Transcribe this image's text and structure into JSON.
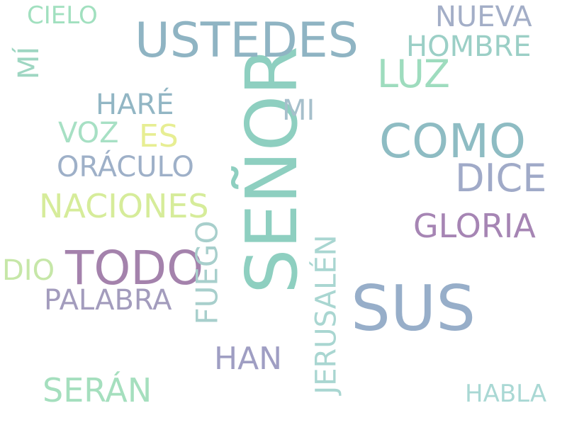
{
  "words": {
    "senor": {
      "text": "SEÑOR",
      "color": "#8ecfc0"
    },
    "ustedes": {
      "text": "USTEDES",
      "color": "#8fb4c3"
    },
    "sus": {
      "text": "SUS",
      "color": "#97aec9"
    },
    "como": {
      "text": "COMO",
      "color": "#8ebcc3"
    },
    "todo": {
      "text": "TODO",
      "color": "#a482ac"
    },
    "dice": {
      "text": "DICE",
      "color": "#a0aac8"
    },
    "luz": {
      "text": "LUZ",
      "color": "#9edcbe"
    },
    "naciones": {
      "text": "NACIONES",
      "color": "#d6ec9a"
    },
    "gloria": {
      "text": "GLORIA",
      "color": "#a685b4"
    },
    "jerusalen": {
      "text": "JERUSALÉN",
      "color": "#a9d6d1"
    },
    "fuego": {
      "text": "FUEGO",
      "color": "#a8cfcc"
    },
    "seran": {
      "text": "SERÁN",
      "color": "#a5dfbe"
    },
    "nueva": {
      "text": "NUEVA",
      "color": "#a3aec7"
    },
    "hombre": {
      "text": "HOMBRE",
      "color": "#9bcfc6"
    },
    "palabra": {
      "text": "PALABRA",
      "color": "#a39cbd"
    },
    "oraculo": {
      "text": "ORÁCULO",
      "color": "#9eb0c8"
    },
    "hare": {
      "text": "HARÉ",
      "color": "#92b6c4"
    },
    "es": {
      "text": "ES",
      "color": "#e7ee93"
    },
    "voz": {
      "text": "VOZ",
      "color": "#a7e0c4"
    },
    "han": {
      "text": "HAN",
      "color": "#9f9ec3"
    },
    "mi": {
      "text": "MI",
      "color": "#a6bfcb"
    },
    "mi_acc": {
      "text": "MÍ",
      "color": "#9ed6c2"
    },
    "cielo": {
      "text": "CIELO",
      "color": "#a1e0bf"
    },
    "dio": {
      "text": "DIO",
      "color": "#c6e7a8"
    },
    "habla": {
      "text": "HABLA",
      "color": "#a9d8d4"
    }
  }
}
